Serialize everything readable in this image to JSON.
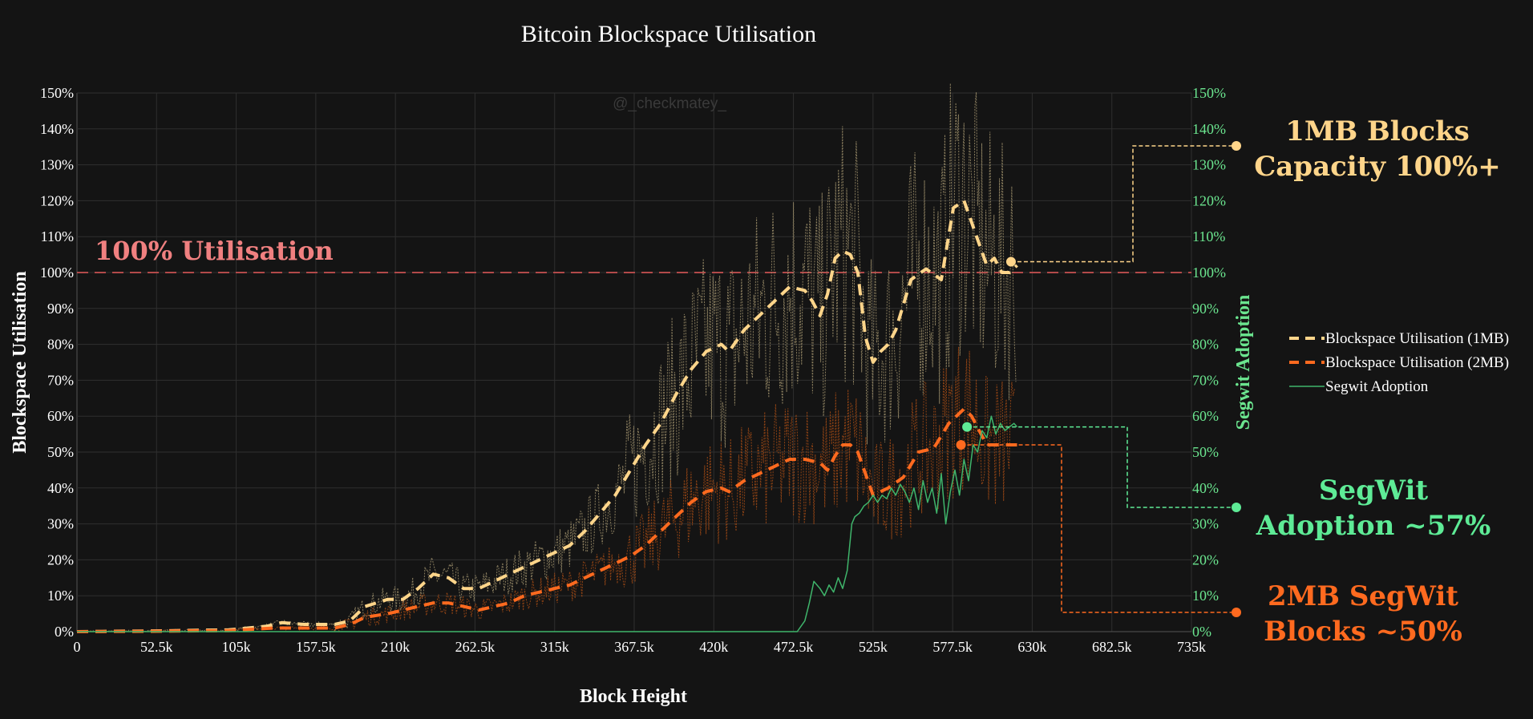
{
  "chart_data": {
    "type": "line",
    "title": "Bitcoin Blockspace Utilisation",
    "xlabel": "Block Height",
    "ylabel": "Blockspace Utilisation",
    "y2label": "Segwit Adoption",
    "watermark": "@_checkmatey_",
    "xlim": [
      0,
      735000
    ],
    "ylim": [
      0,
      150
    ],
    "x_ticks": [
      {
        "v": 0,
        "label": "0"
      },
      {
        "v": 52500,
        "label": "52.5k"
      },
      {
        "v": 105000,
        "label": "105k"
      },
      {
        "v": 157500,
        "label": "157.5k"
      },
      {
        "v": 210000,
        "label": "210k"
      },
      {
        "v": 262500,
        "label": "262.5k"
      },
      {
        "v": 315000,
        "label": "315k"
      },
      {
        "v": 367500,
        "label": "367.5k"
      },
      {
        "v": 420000,
        "label": "420k"
      },
      {
        "v": 472500,
        "label": "472.5k"
      },
      {
        "v": 525000,
        "label": "525k"
      },
      {
        "v": 577500,
        "label": "577.5k"
      },
      {
        "v": 630000,
        "label": "630k"
      },
      {
        "v": 682500,
        "label": "682.5k"
      },
      {
        "v": 735000,
        "label": "735k"
      }
    ],
    "y_ticks": [
      {
        "v": 0,
        "label": "0%"
      },
      {
        "v": 10,
        "label": "10%"
      },
      {
        "v": 20,
        "label": "20%"
      },
      {
        "v": 30,
        "label": "30%"
      },
      {
        "v": 40,
        "label": "40%"
      },
      {
        "v": 50,
        "label": "50%"
      },
      {
        "v": 60,
        "label": "60%"
      },
      {
        "v": 70,
        "label": "70%"
      },
      {
        "v": 80,
        "label": "80%"
      },
      {
        "v": 90,
        "label": "90%"
      },
      {
        "v": 100,
        "label": "100%"
      },
      {
        "v": 110,
        "label": "110%"
      },
      {
        "v": 120,
        "label": "120%"
      },
      {
        "v": 130,
        "label": "130%"
      },
      {
        "v": 140,
        "label": "140%"
      },
      {
        "v": 150,
        "label": "150%"
      }
    ],
    "reference_line": {
      "y": 100,
      "label": "100% Utilisation",
      "color": "#b24a4a",
      "label_color": "#f08080"
    },
    "series": [
      {
        "name": "Blockspace Utilisation (1MB)",
        "color": "#ffd58a",
        "raw_color": "#9e8f6b",
        "dash": "dashed",
        "x": [
          0,
          50000,
          100000,
          125000,
          135000,
          150000,
          170000,
          180000,
          190000,
          205000,
          215000,
          225000,
          235000,
          245000,
          255000,
          265000,
          275000,
          285000,
          295000,
          305000,
          315000,
          325000,
          335000,
          345000,
          355000,
          365000,
          375000,
          385000,
          395000,
          405000,
          415000,
          425000,
          430000,
          440000,
          450000,
          460000,
          470000,
          480000,
          485000,
          490000,
          495000,
          500000,
          505000,
          510000,
          515000,
          520000,
          525000,
          530000,
          535000,
          540000,
          550000,
          560000,
          570000,
          578000,
          585000,
          590000,
          595000,
          600000,
          605000,
          610000,
          615000,
          620000
        ],
        "y": [
          0,
          0.2,
          0.5,
          1.5,
          2.5,
          2,
          2,
          3,
          7,
          9,
          9,
          12,
          16,
          15,
          12,
          12,
          14,
          16,
          18,
          20,
          22,
          24,
          28,
          33,
          38,
          45,
          52,
          58,
          66,
          73,
          78,
          80,
          78,
          84,
          88,
          92,
          96,
          95,
          92,
          88,
          94,
          104,
          106,
          105,
          100,
          82,
          75,
          78,
          80,
          84,
          98,
          101,
          98,
          118,
          120,
          114,
          108,
          102,
          104,
          100,
          100,
          102
        ]
      },
      {
        "name": "Blockspace Utilisation (2MB)",
        "color": "#ff6a1f",
        "raw_color": "#a24a14",
        "dash": "dashed",
        "x": [
          0,
          50000,
          100000,
          130000,
          150000,
          170000,
          180000,
          190000,
          205000,
          215000,
          225000,
          235000,
          245000,
          255000,
          265000,
          275000,
          285000,
          295000,
          305000,
          315000,
          325000,
          335000,
          345000,
          355000,
          365000,
          375000,
          385000,
          395000,
          405000,
          415000,
          425000,
          430000,
          440000,
          450000,
          460000,
          470000,
          480000,
          490000,
          495000,
          500000,
          505000,
          510000,
          515000,
          520000,
          525000,
          535000,
          545000,
          555000,
          565000,
          575000,
          585000,
          590000,
          595000,
          600000,
          605000,
          610000,
          615000,
          620000
        ],
        "y": [
          0,
          0.1,
          0.3,
          1,
          1,
          1,
          2,
          4,
          5,
          6,
          7,
          8,
          8,
          7,
          6,
          7,
          8,
          10,
          11,
          12,
          13,
          15,
          17,
          19,
          21,
          24,
          28,
          32,
          36,
          39,
          40,
          39,
          42,
          44,
          46,
          48,
          48,
          47,
          45,
          49,
          52,
          52,
          50,
          44,
          38,
          40,
          43,
          50,
          51,
          58,
          62,
          60,
          56,
          52,
          52,
          52,
          52,
          52
        ]
      },
      {
        "name": "Segwit Adoption",
        "color": "#3fb56b",
        "dash": "solid",
        "axis": "y2",
        "x": [
          0,
          475000,
          480000,
          483000,
          486000,
          490000,
          493000,
          496000,
          499000,
          502000,
          505000,
          508000,
          511000,
          513000,
          516000,
          519000,
          522000,
          525000,
          528000,
          531000,
          534000,
          537000,
          540000,
          543000,
          546000,
          549000,
          552000,
          555000,
          558000,
          561000,
          564000,
          567000,
          570000,
          573000,
          576000,
          579000,
          582000,
          585000,
          588000,
          591000,
          594000,
          597000,
          600000,
          603000,
          606000,
          609000,
          612000,
          615000,
          618000,
          620000
        ],
        "y": [
          0,
          0,
          3,
          8,
          14,
          12,
          10,
          13,
          11,
          15,
          12,
          17,
          30,
          32,
          33,
          35,
          36,
          38,
          36,
          38,
          37,
          40,
          38,
          41,
          39,
          36,
          40,
          34,
          42,
          36,
          40,
          33,
          44,
          30,
          39,
          45,
          38,
          48,
          42,
          52,
          50,
          56,
          54,
          60,
          55,
          58,
          56,
          57,
          58,
          57
        ]
      }
    ],
    "legend": {
      "position": "right",
      "items": [
        {
          "label": "Blockspace Utilisation (1MB)",
          "color": "#ffd58a",
          "dash": "dashed"
        },
        {
          "label": "Blockspace Utilisation (2MB)",
          "color": "#ff6a1f",
          "dash": "dashed"
        },
        {
          "label": "Segwit Adoption",
          "color": "#3fb56b",
          "dash": "solid"
        }
      ]
    },
    "annotations": [
      {
        "line1": "1MB Blocks",
        "line2": "Capacity 100%+",
        "color": "#ffd58a",
        "point": {
          "x": 616000,
          "y": 103
        }
      },
      {
        "line1": "SegWit",
        "line2": "Adoption ~57%",
        "color": "#5eeb96",
        "point": {
          "x": 587000,
          "y": 57
        }
      },
      {
        "line1": "2MB SegWit",
        "line2": "Blocks ~50%",
        "color": "#ff6a1f",
        "point": {
          "x": 583000,
          "y": 52
        }
      }
    ]
  }
}
